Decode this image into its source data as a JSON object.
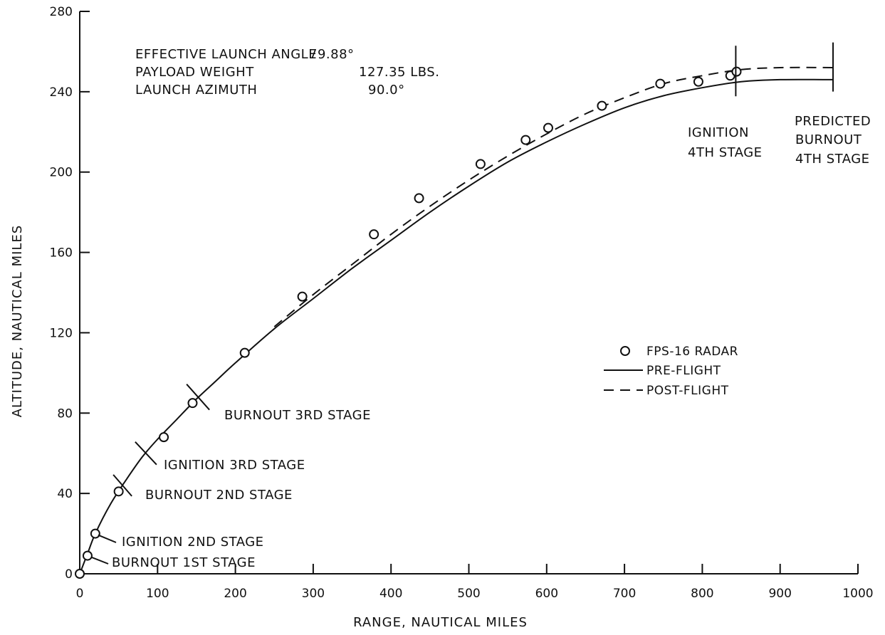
{
  "chart_data": {
    "type": "line",
    "title": "",
    "xlabel": "RANGE,  NAUTICAL MILES",
    "ylabel": "ALTITUDE,  NAUTICAL MILES",
    "xlim": [
      0,
      1000
    ],
    "ylim": [
      0,
      280
    ],
    "xticks": [
      0,
      100,
      200,
      300,
      400,
      500,
      600,
      700,
      800,
      900,
      1000
    ],
    "yticks": [
      0,
      40,
      80,
      120,
      160,
      200,
      240,
      280
    ],
    "grid": false,
    "info": [
      {
        "label": "EFFECTIVE LAUNCH ANGLE",
        "value": "79.88°"
      },
      {
        "label": "PAYLOAD  WEIGHT",
        "value": "127.35 LBS."
      },
      {
        "label": "LAUNCH AZIMUTH",
        "value": "90.0°"
      }
    ],
    "legend": {
      "position": "center-right",
      "entries": [
        {
          "label": "FPS-16 RADAR",
          "style": "marker-circle"
        },
        {
          "label": "PRE-FLIGHT",
          "style": "solid"
        },
        {
          "label": "POST-FLIGHT",
          "style": "dashed"
        }
      ]
    },
    "series": [
      {
        "name": "FPS-16 RADAR",
        "style": "marker-circle",
        "x": [
          0,
          10,
          20,
          50,
          108,
          145,
          212,
          286,
          378,
          436,
          515,
          573,
          602,
          671,
          746,
          795,
          836,
          844
        ],
        "y": [
          0,
          9,
          20,
          41,
          68,
          85,
          110,
          138,
          169,
          187,
          204,
          216,
          222,
          233,
          244,
          245,
          248,
          250
        ]
      },
      {
        "name": "PRE-FLIGHT",
        "style": "solid",
        "x": [
          0,
          10,
          20,
          40,
          60,
          80,
          100,
          125,
          150,
          175,
          200,
          250,
          300,
          350,
          400,
          450,
          500,
          550,
          600,
          650,
          700,
          750,
          800,
          850,
          900,
          968
        ],
        "y": [
          0,
          10,
          20,
          35,
          47,
          58,
          67,
          77,
          87,
          96,
          105,
          122,
          137,
          152,
          166,
          180,
          193,
          205,
          215,
          224,
          232,
          238,
          242,
          245,
          246,
          246
        ]
      },
      {
        "name": "POST-FLIGHT",
        "style": "dashed",
        "x": [
          250,
          300,
          350,
          400,
          450,
          500,
          550,
          600,
          650,
          700,
          750,
          800,
          850,
          900,
          968
        ],
        "y": [
          123,
          139,
          154,
          169,
          183,
          196,
          208,
          219,
          229,
          237,
          244,
          248,
          251,
          252,
          252
        ]
      }
    ],
    "events": [
      {
        "label": "BURNOUT  1ST STAGE",
        "x": 10,
        "y": 9
      },
      {
        "label": "IGNITION  2ND STAGE",
        "x": 20,
        "y": 20
      },
      {
        "label": "BURNOUT  2ND STAGE",
        "x": 55,
        "y": 44
      },
      {
        "label": "IGNITION  3RD STAGE",
        "x": 85,
        "y": 60
      },
      {
        "label": "BURNOUT  3RD STAGE",
        "x": 152,
        "y": 88
      },
      {
        "label": "IGNITION  4TH  STAGE",
        "x": 843,
        "y": 248
      },
      {
        "label": "PREDICTED  BURNOUT  4TH  STAGE",
        "x": 968,
        "y": 250
      }
    ],
    "event_labels": {
      "ignition_4th": [
        "IGNITION",
        "4TH  STAGE"
      ],
      "predicted_burnout_4th": [
        "PREDICTED",
        "BURNOUT",
        "4TH  STAGE"
      ]
    }
  }
}
